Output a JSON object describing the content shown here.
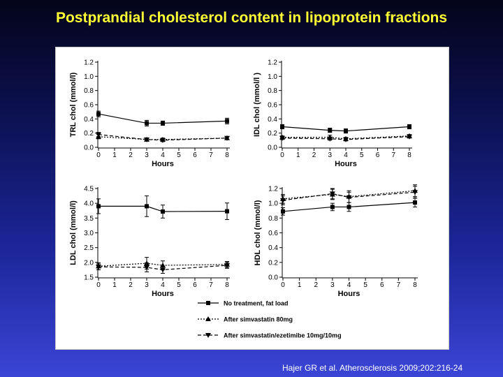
{
  "slide": {
    "title": "Postprandial cholesterol content in lipoprotein fractions",
    "citation": "Hajer GR et al. Atherosclerosis 2009;202:216-24"
  },
  "colors": {
    "title": "#ffff33",
    "series": "#000000",
    "panel_bg": "#ffffff"
  },
  "legend": {
    "placement": "bottom-right",
    "items": [
      {
        "label": "No treatment, fat load",
        "style": "solid",
        "marker": "square"
      },
      {
        "label": "After simvastatin 80mg",
        "style": "dotted",
        "marker": "triangle-up"
      },
      {
        "label": "After simvastatin/ezetimibe 10mg/10mg",
        "style": "dashed",
        "marker": "triangle-down"
      }
    ]
  },
  "chart_data": [
    {
      "type": "line",
      "ylabel": "TRL chol (mmol/l)",
      "xlabel": "Hours",
      "x_ticks": [
        0,
        1,
        2,
        3,
        4,
        5,
        6,
        7,
        8
      ],
      "y_ticks": [
        0.0,
        0.2,
        0.4,
        0.6,
        0.8,
        1.0,
        1.2
      ],
      "y_tick_labels": [
        "0.0",
        "0.2",
        "0.4",
        "0.6",
        "0.8",
        "1.0",
        "1.2"
      ],
      "ylim": [
        0.0,
        1.2
      ],
      "xlim": [
        0,
        8
      ],
      "x": [
        0,
        3,
        4,
        8
      ],
      "series": [
        {
          "name": "No treatment, fat load",
          "values": [
            0.47,
            0.34,
            0.34,
            0.37
          ],
          "err": [
            0.04,
            0.04,
            0.03,
            0.04
          ]
        },
        {
          "name": "After simvastatin 80mg",
          "values": [
            0.15,
            0.11,
            0.11,
            0.13
          ],
          "err": [
            0.03,
            0.02,
            0.02,
            0.02
          ]
        },
        {
          "name": "After simvastatin/ezetimibe 10mg/10mg",
          "values": [
            0.18,
            0.11,
            0.1,
            0.13
          ],
          "err": [
            0.03,
            0.02,
            0.02,
            0.02
          ]
        }
      ]
    },
    {
      "type": "line",
      "ylabel": "IDL chol (mmol/l )",
      "xlabel": "Hours",
      "x_ticks": [
        0,
        1,
        2,
        3,
        4,
        5,
        6,
        7,
        8
      ],
      "y_ticks": [
        0.0,
        0.2,
        0.4,
        0.6,
        0.8,
        1.0,
        1.2
      ],
      "y_tick_labels": [
        "0.0",
        "0.2",
        "0.4",
        "0.6",
        "0.8",
        "1.0",
        "1.2"
      ],
      "ylim": [
        0.0,
        1.2
      ],
      "xlim": [
        0,
        8
      ],
      "x": [
        0,
        3,
        4,
        8
      ],
      "series": [
        {
          "name": "No treatment, fat load",
          "values": [
            0.29,
            0.24,
            0.23,
            0.29
          ],
          "err": [
            0.03,
            0.03,
            0.03,
            0.03
          ]
        },
        {
          "name": "After simvastatin 80mg",
          "values": [
            0.14,
            0.14,
            0.12,
            0.16
          ],
          "err": [
            0.02,
            0.03,
            0.02,
            0.02
          ]
        },
        {
          "name": "After simvastatin/ezetimibe 10mg/10mg",
          "values": [
            0.13,
            0.12,
            0.11,
            0.15
          ],
          "err": [
            0.02,
            0.02,
            0.02,
            0.02
          ]
        }
      ]
    },
    {
      "type": "line",
      "ylabel": "LDL chol (mmol/l)",
      "xlabel": "Hours",
      "x_ticks": [
        0,
        1,
        2,
        3,
        4,
        5,
        6,
        7,
        8
      ],
      "y_ticks": [
        1.5,
        2.0,
        2.5,
        3.0,
        3.5,
        4.0,
        4.5
      ],
      "y_tick_labels": [
        "1.5",
        "2.0",
        "2.5",
        "3.0",
        "3.5",
        "4.0",
        "4.5"
      ],
      "ylim": [
        1.5,
        4.5
      ],
      "xlim": [
        0,
        8
      ],
      "x": [
        0,
        3,
        4,
        8
      ],
      "series": [
        {
          "name": "No treatment, fat load",
          "values": [
            3.9,
            3.9,
            3.72,
            3.73
          ],
          "err": [
            0.25,
            0.35,
            0.22,
            0.28
          ]
        },
        {
          "name": "After simvastatin 80mg",
          "values": [
            1.87,
            1.97,
            1.9,
            1.93
          ],
          "err": [
            0.12,
            0.2,
            0.15,
            0.1
          ]
        },
        {
          "name": "After simvastatin/ezetimibe 10mg/10mg",
          "values": [
            1.85,
            1.83,
            1.75,
            1.9
          ],
          "err": [
            0.1,
            0.15,
            0.12,
            0.1
          ]
        }
      ]
    },
    {
      "type": "line",
      "ylabel": "HDL chol (mmol/l)",
      "xlabel": "Hours",
      "x_ticks": [
        0,
        1,
        2,
        3,
        4,
        5,
        6,
        7,
        8
      ],
      "y_ticks": [
        0.0,
        0.2,
        0.4,
        0.6,
        0.8,
        1.0,
        1.2
      ],
      "y_tick_labels": [
        "0.0",
        "0.2",
        "0.4",
        "0.6",
        "0.8",
        "1.0",
        "1.2"
      ],
      "ylim": [
        0.0,
        1.2
      ],
      "xlim": [
        0,
        8
      ],
      "x": [
        0,
        3,
        4,
        8
      ],
      "series": [
        {
          "name": "No treatment, fat load",
          "values": [
            0.89,
            0.95,
            0.95,
            1.01
          ],
          "err": [
            0.05,
            0.05,
            0.06,
            0.06
          ]
        },
        {
          "name": "After simvastatin 80mg",
          "values": [
            1.06,
            1.12,
            1.09,
            1.17
          ],
          "err": [
            0.06,
            0.07,
            0.08,
            0.08
          ]
        },
        {
          "name": "After simvastatin/ezetimibe 10mg/10mg",
          "values": [
            1.04,
            1.13,
            1.08,
            1.15
          ],
          "err": [
            0.06,
            0.07,
            0.07,
            0.08
          ]
        }
      ]
    }
  ]
}
